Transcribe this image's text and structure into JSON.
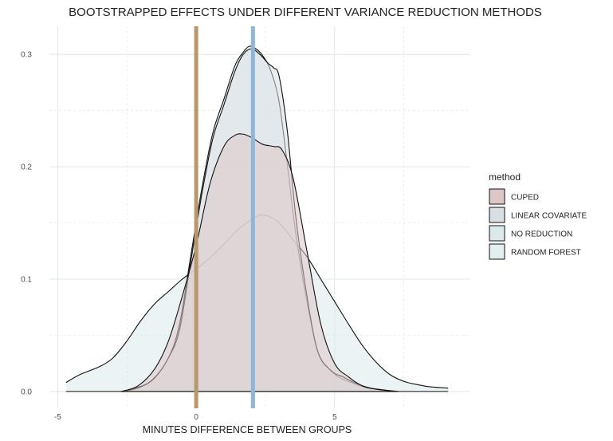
{
  "chart_data": {
    "type": "area",
    "title": "BOOTSTRAPPED EFFECTS UNDER DIFFERENT VARIANCE REDUCTION METHODS",
    "xlabel": "MINUTES DIFFERENCE BETWEEN GROUPS",
    "ylabel": "",
    "xlim": [
      -5.3,
      9.9
    ],
    "ylim": [
      -0.015,
      0.325
    ],
    "x_ticks": [
      -5,
      0,
      5
    ],
    "y_ticks": [
      0.0,
      0.1,
      0.2,
      0.3
    ],
    "x_tick_labels": [
      "-5",
      "0",
      "5"
    ],
    "y_tick_labels": [
      "0.0",
      "0.1",
      "0.2",
      "0.3"
    ],
    "grid": true,
    "legend_title": "method",
    "legend_position": "right",
    "vlines": [
      {
        "x": 0.0,
        "color": "#b8976a"
      },
      {
        "x": 2.05,
        "color": "#8fb5d8"
      }
    ],
    "series": [
      {
        "name": "NO REDUCTION",
        "fill": "#dbe9ec",
        "points": [
          [
            -4.7,
            0.008
          ],
          [
            -4.2,
            0.015
          ],
          [
            -3.5,
            0.022
          ],
          [
            -3.0,
            0.03
          ],
          [
            -2.5,
            0.045
          ],
          [
            -2.0,
            0.063
          ],
          [
            -1.5,
            0.078
          ],
          [
            -1.0,
            0.089
          ],
          [
            -0.5,
            0.1
          ],
          [
            0.0,
            0.109
          ],
          [
            0.5,
            0.119
          ],
          [
            1.0,
            0.131
          ],
          [
            1.5,
            0.144
          ],
          [
            2.0,
            0.153
          ],
          [
            2.3,
            0.157
          ],
          [
            2.6,
            0.156
          ],
          [
            3.0,
            0.15
          ],
          [
            3.5,
            0.135
          ],
          [
            4.0,
            0.12
          ],
          [
            4.5,
            0.1
          ],
          [
            5.0,
            0.08
          ],
          [
            5.5,
            0.06
          ],
          [
            6.0,
            0.041
          ],
          [
            6.5,
            0.026
          ],
          [
            7.0,
            0.015
          ],
          [
            7.5,
            0.009
          ],
          [
            8.0,
            0.006
          ],
          [
            8.5,
            0.004
          ],
          [
            9.1,
            0.003
          ]
        ]
      },
      {
        "name": "RANDOM FOREST",
        "fill": "#e3eef1",
        "points": [
          [
            -2.7,
            0.0
          ],
          [
            -2.2,
            0.003
          ],
          [
            -1.6,
            0.01
          ],
          [
            -1.0,
            0.03
          ],
          [
            -0.6,
            0.06
          ],
          [
            -0.2,
            0.12
          ],
          [
            0.2,
            0.18
          ],
          [
            0.6,
            0.23
          ],
          [
            1.0,
            0.26
          ],
          [
            1.4,
            0.29
          ],
          [
            1.7,
            0.302
          ],
          [
            1.9,
            0.307
          ],
          [
            2.1,
            0.306
          ],
          [
            2.4,
            0.299
          ],
          [
            2.7,
            0.285
          ],
          [
            3.0,
            0.257
          ],
          [
            3.3,
            0.2
          ],
          [
            3.6,
            0.14
          ],
          [
            4.0,
            0.08
          ],
          [
            4.4,
            0.035
          ],
          [
            4.8,
            0.02
          ],
          [
            5.2,
            0.012
          ],
          [
            5.6,
            0.008
          ],
          [
            6.2,
            0.003
          ],
          [
            7.2,
            0.0
          ]
        ]
      },
      {
        "name": "LINEAR COVARIATE",
        "fill": "#d9dde4",
        "points": [
          [
            -2.6,
            0.0
          ],
          [
            -2.0,
            0.004
          ],
          [
            -1.5,
            0.012
          ],
          [
            -1.0,
            0.03
          ],
          [
            -0.6,
            0.055
          ],
          [
            -0.2,
            0.115
          ],
          [
            0.2,
            0.175
          ],
          [
            0.6,
            0.225
          ],
          [
            1.0,
            0.255
          ],
          [
            1.4,
            0.285
          ],
          [
            1.7,
            0.3
          ],
          [
            2.0,
            0.305
          ],
          [
            2.3,
            0.3
          ],
          [
            2.6,
            0.292
          ],
          [
            2.8,
            0.288
          ],
          [
            3.0,
            0.28
          ],
          [
            3.3,
            0.23
          ],
          [
            3.6,
            0.155
          ],
          [
            4.0,
            0.085
          ],
          [
            4.4,
            0.035
          ],
          [
            4.9,
            0.018
          ],
          [
            5.3,
            0.013
          ],
          [
            5.7,
            0.008
          ],
          [
            6.3,
            0.003
          ],
          [
            7.3,
            0.0
          ]
        ]
      },
      {
        "name": "CUPED",
        "fill": "#dcc7c7",
        "points": [
          [
            -2.7,
            0.0
          ],
          [
            -2.1,
            0.005
          ],
          [
            -1.5,
            0.02
          ],
          [
            -1.0,
            0.045
          ],
          [
            -0.5,
            0.085
          ],
          [
            0.0,
            0.13
          ],
          [
            0.5,
            0.185
          ],
          [
            1.0,
            0.218
          ],
          [
            1.4,
            0.228
          ],
          [
            1.7,
            0.229
          ],
          [
            2.0,
            0.226
          ],
          [
            2.4,
            0.22
          ],
          [
            2.8,
            0.218
          ],
          [
            3.1,
            0.215
          ],
          [
            3.5,
            0.19
          ],
          [
            4.0,
            0.125
          ],
          [
            4.5,
            0.06
          ],
          [
            5.0,
            0.025
          ],
          [
            5.5,
            0.013
          ],
          [
            6.0,
            0.005
          ],
          [
            6.5,
            0.002
          ],
          [
            7.2,
            0.0
          ]
        ]
      }
    ]
  }
}
